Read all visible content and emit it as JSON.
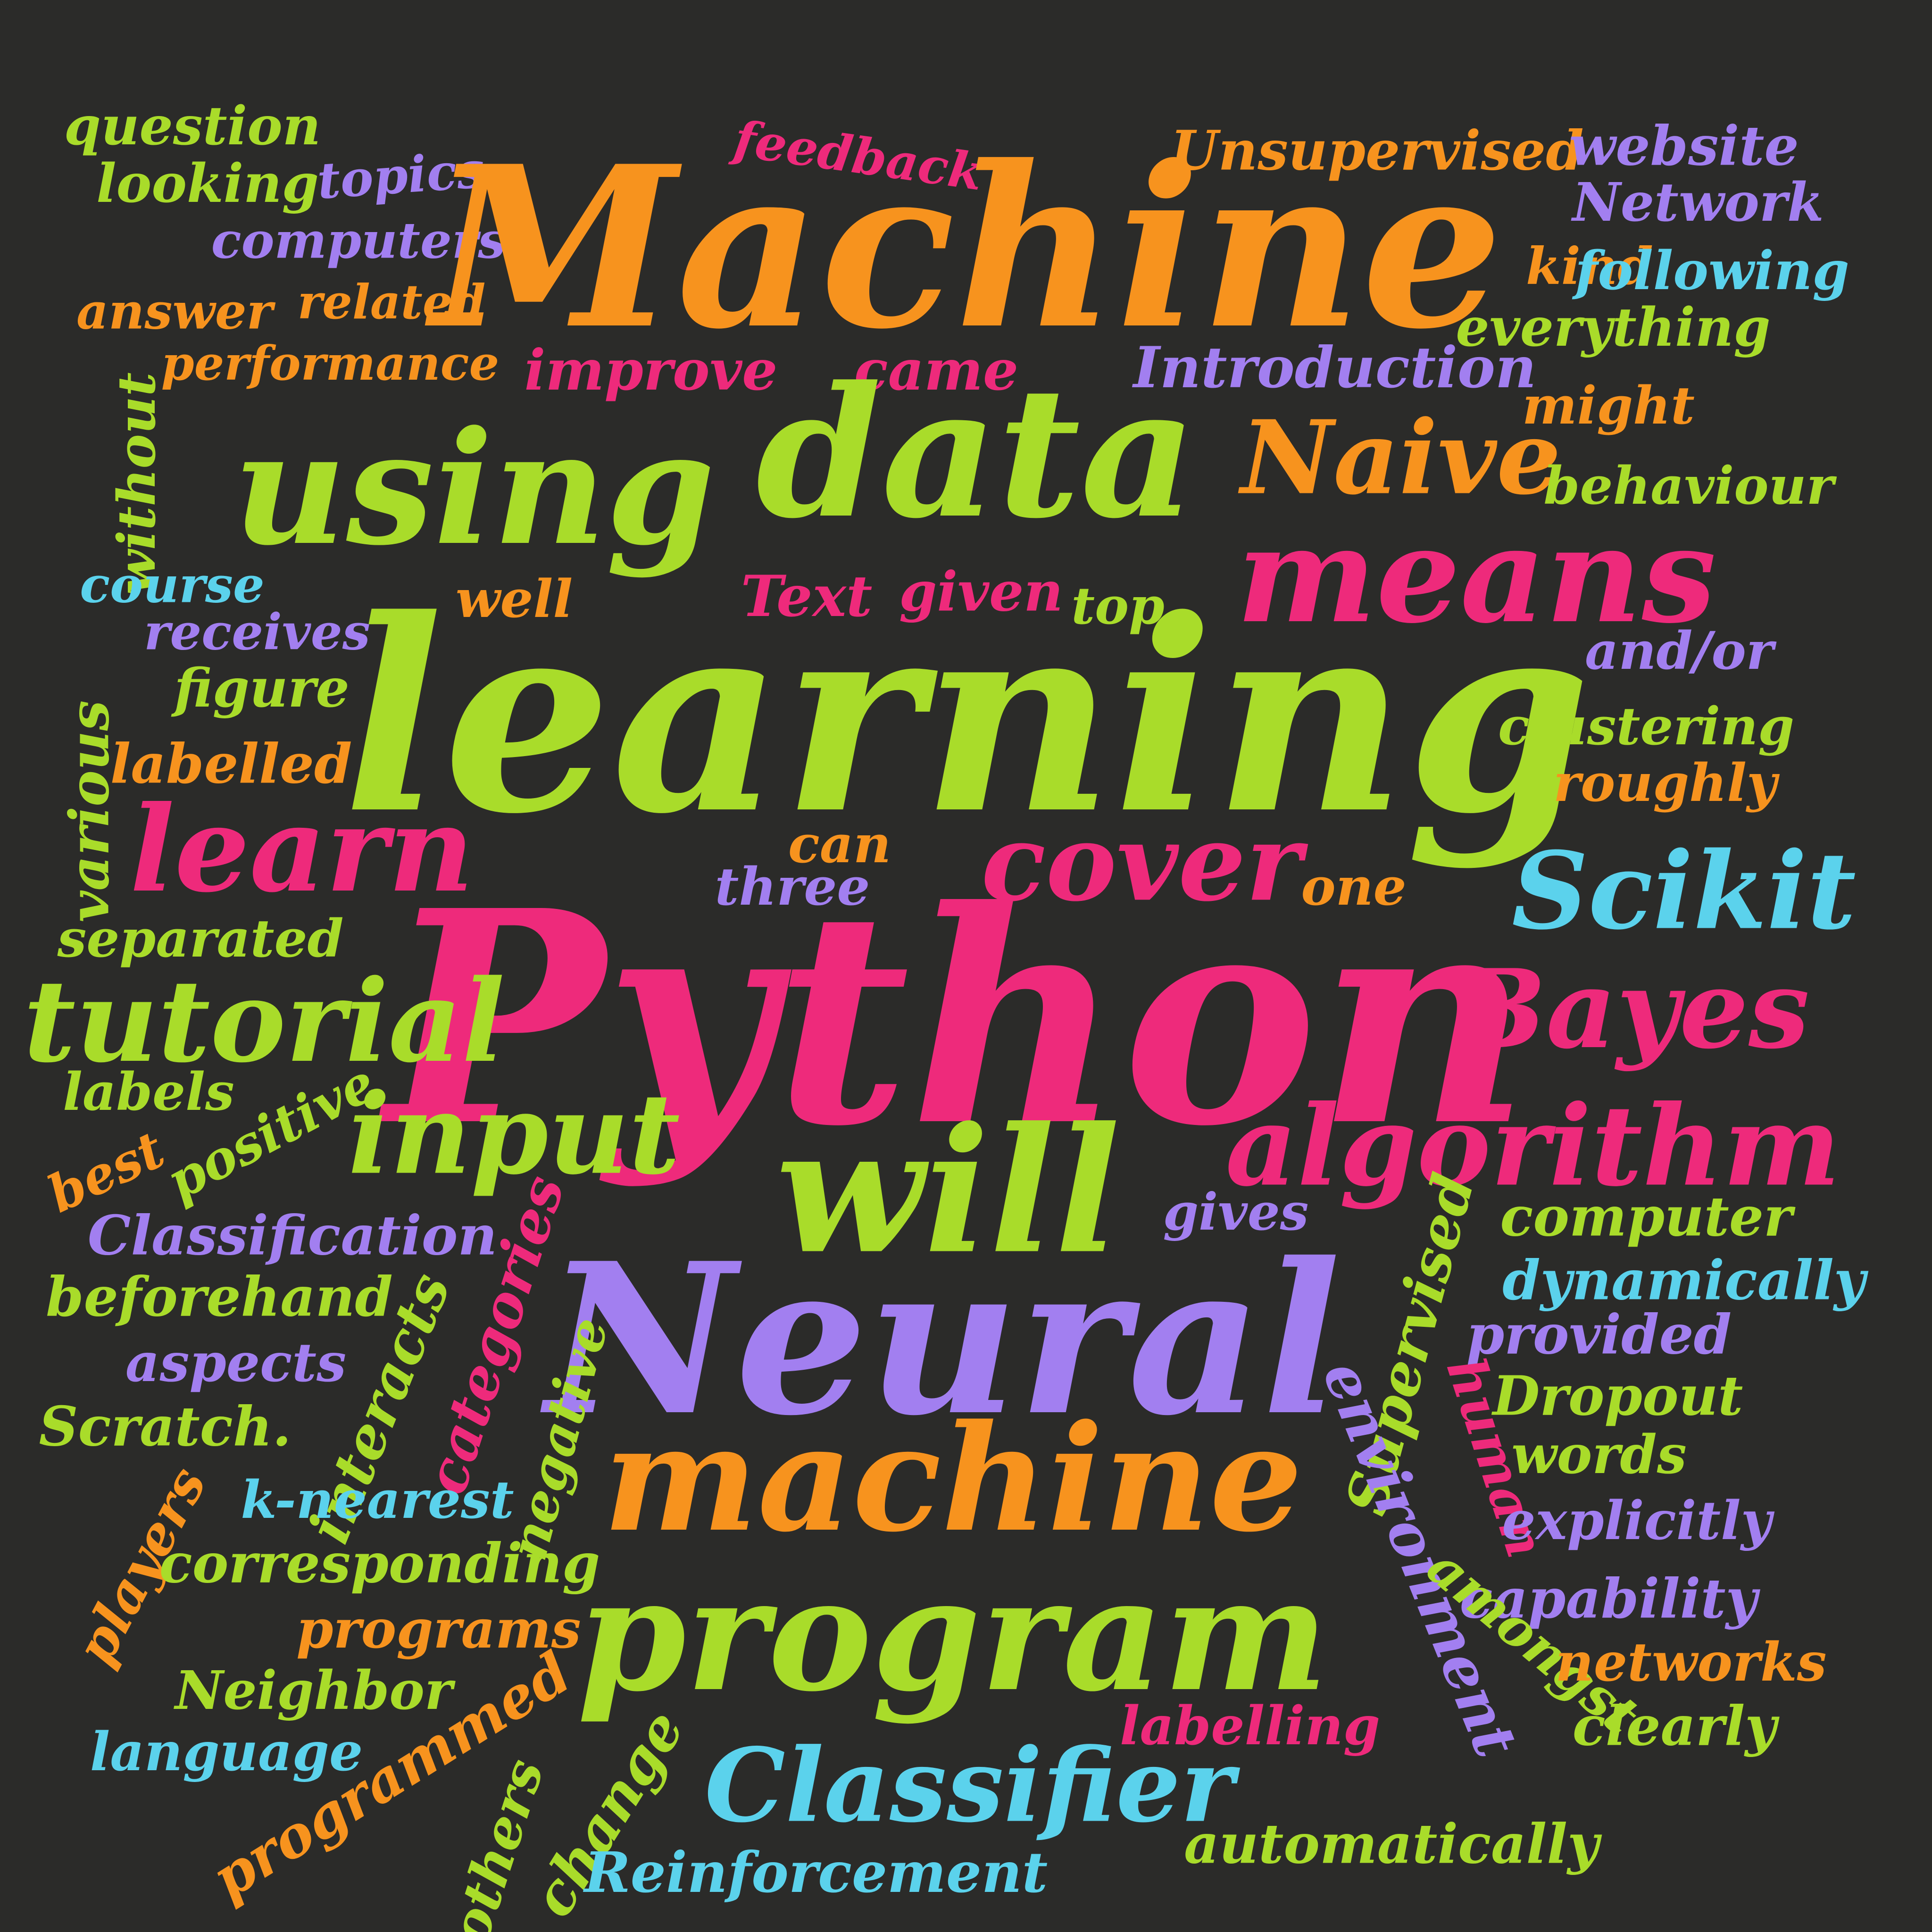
{
  "background": "#2b2b29",
  "palette": {
    "green": "#a9dc2a",
    "orange": "#f7931e",
    "pink": "#ee2a7b",
    "purple": "#a27ff0",
    "cyan": "#5bd2ec"
  },
  "words": [
    {
      "text": "question",
      "color": "green"
    },
    {
      "text": "looking",
      "color": "green"
    },
    {
      "text": "topics",
      "color": "purple"
    },
    {
      "text": "computers",
      "color": "purple"
    },
    {
      "text": "answer",
      "color": "orange"
    },
    {
      "text": "related",
      "color": "orange"
    },
    {
      "text": "performance",
      "color": "orange"
    },
    {
      "text": "feedback",
      "color": "pink"
    },
    {
      "text": "Machine",
      "color": "orange"
    },
    {
      "text": "Unsupervised",
      "color": "orange"
    },
    {
      "text": "website",
      "color": "purple"
    },
    {
      "text": "Network",
      "color": "purple"
    },
    {
      "text": "kind",
      "color": "orange"
    },
    {
      "text": "following",
      "color": "cyan"
    },
    {
      "text": "everything",
      "color": "green"
    },
    {
      "text": "improve",
      "color": "pink"
    },
    {
      "text": "came",
      "color": "pink"
    },
    {
      "text": "Introduction",
      "color": "purple"
    },
    {
      "text": "might",
      "color": "orange"
    },
    {
      "text": "without",
      "color": "green"
    },
    {
      "text": "using",
      "color": "green"
    },
    {
      "text": "data",
      "color": "green"
    },
    {
      "text": "Naive",
      "color": "orange"
    },
    {
      "text": "behaviour",
      "color": "green"
    },
    {
      "text": "means",
      "color": "pink"
    },
    {
      "text": "course",
      "color": "cyan"
    },
    {
      "text": "well",
      "color": "orange"
    },
    {
      "text": "Text",
      "color": "pink"
    },
    {
      "text": "given",
      "color": "pink"
    },
    {
      "text": "top",
      "color": "green"
    },
    {
      "text": "receives",
      "color": "purple"
    },
    {
      "text": "and/or",
      "color": "purple"
    },
    {
      "text": "learning",
      "color": "green"
    },
    {
      "text": "figure",
      "color": "green"
    },
    {
      "text": "various",
      "color": "green"
    },
    {
      "text": "labelled",
      "color": "orange"
    },
    {
      "text": "clustering",
      "color": "green"
    },
    {
      "text": "roughly",
      "color": "orange"
    },
    {
      "text": "learn",
      "color": "pink"
    },
    {
      "text": "can",
      "color": "orange"
    },
    {
      "text": "three",
      "color": "purple"
    },
    {
      "text": "cover",
      "color": "pink"
    },
    {
      "text": "one",
      "color": "orange"
    },
    {
      "text": "Scikit",
      "color": "cyan"
    },
    {
      "text": "separated",
      "color": "green"
    },
    {
      "text": "Python",
      "color": "pink"
    },
    {
      "text": "tutorial",
      "color": "green"
    },
    {
      "text": "Bayes",
      "color": "pink"
    },
    {
      "text": "labels",
      "color": "green"
    },
    {
      "text": "positive",
      "color": "green"
    },
    {
      "text": "best",
      "color": "orange"
    },
    {
      "text": "input",
      "color": "green"
    },
    {
      "text": "will",
      "color": "green"
    },
    {
      "text": "algorithm",
      "color": "pink"
    },
    {
      "text": "Classification",
      "color": "purple"
    },
    {
      "text": "categories",
      "color": "pink"
    },
    {
      "text": "gives",
      "color": "purple"
    },
    {
      "text": "Neural",
      "color": "purple"
    },
    {
      "text": "computer",
      "color": "green"
    },
    {
      "text": "beforehand",
      "color": "green"
    },
    {
      "text": "interacts",
      "color": "green"
    },
    {
      "text": "Supervised",
      "color": "green"
    },
    {
      "text": "dynamically",
      "color": "cyan"
    },
    {
      "text": "aspects",
      "color": "purple"
    },
    {
      "text": "provided",
      "color": "purple"
    },
    {
      "text": "negative",
      "color": "green"
    },
    {
      "text": "human",
      "color": "pink"
    },
    {
      "text": "Dropout",
      "color": "green"
    },
    {
      "text": "Scratch.",
      "color": "green"
    },
    {
      "text": "words",
      "color": "green"
    },
    {
      "text": "machine",
      "color": "orange"
    },
    {
      "text": "k-nearest",
      "color": "cyan"
    },
    {
      "text": "environment",
      "color": "purple"
    },
    {
      "text": "explicitly",
      "color": "purple"
    },
    {
      "text": "players",
      "color": "orange"
    },
    {
      "text": "corresponding",
      "color": "green"
    },
    {
      "text": "program",
      "color": "green"
    },
    {
      "text": "capability",
      "color": "purple"
    },
    {
      "text": "programs",
      "color": "orange"
    },
    {
      "text": "amongst",
      "color": "green"
    },
    {
      "text": "networks",
      "color": "orange"
    },
    {
      "text": "Neighbor",
      "color": "green"
    },
    {
      "text": "programmed",
      "color": "orange"
    },
    {
      "text": "labelling",
      "color": "pink"
    },
    {
      "text": "clearly",
      "color": "green"
    },
    {
      "text": "language",
      "color": "cyan"
    },
    {
      "text": "change",
      "color": "green"
    },
    {
      "text": "Classifier",
      "color": "cyan"
    },
    {
      "text": "others",
      "color": "green"
    },
    {
      "text": "automatically",
      "color": "green"
    },
    {
      "text": "Reinforcement",
      "color": "cyan"
    }
  ]
}
